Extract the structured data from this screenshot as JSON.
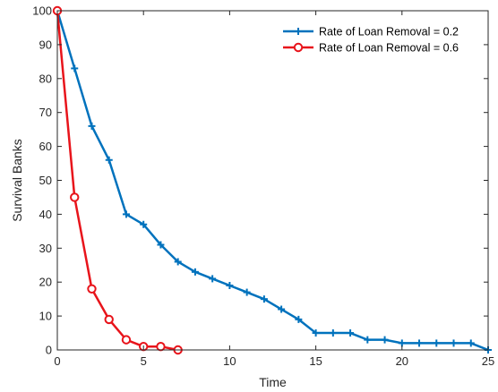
{
  "chart_data": {
    "type": "line",
    "xlabel": "Time",
    "ylabel": "Survival Banks",
    "xlim": [
      0,
      25
    ],
    "ylim": [
      0,
      100
    ],
    "xticks": [
      0,
      5,
      10,
      15,
      20,
      25
    ],
    "yticks": [
      0,
      10,
      20,
      30,
      40,
      50,
      60,
      70,
      80,
      90,
      100
    ],
    "grid": false,
    "legend_position": "top-right",
    "series": [
      {
        "name": "Rate of Loan Removal = 0.2",
        "color": "#0072BD",
        "marker": "plus",
        "x": [
          0,
          1,
          2,
          3,
          4,
          5,
          6,
          7,
          8,
          9,
          10,
          11,
          12,
          13,
          14,
          15,
          16,
          17,
          18,
          19,
          20,
          21,
          22,
          23,
          24,
          25
        ],
        "y": [
          100,
          83,
          66,
          56,
          40,
          37,
          31,
          26,
          23,
          21,
          19,
          17,
          15,
          12,
          9,
          5,
          5,
          5,
          3,
          3,
          2,
          2,
          2,
          2,
          2,
          0
        ]
      },
      {
        "name": "Rate of Loan Removal = 0.6",
        "color": "#E8141B",
        "marker": "circle",
        "x": [
          0,
          1,
          2,
          3,
          4,
          5,
          6,
          7
        ],
        "y": [
          100,
          45,
          18,
          9,
          3,
          1,
          1,
          0
        ]
      }
    ]
  }
}
